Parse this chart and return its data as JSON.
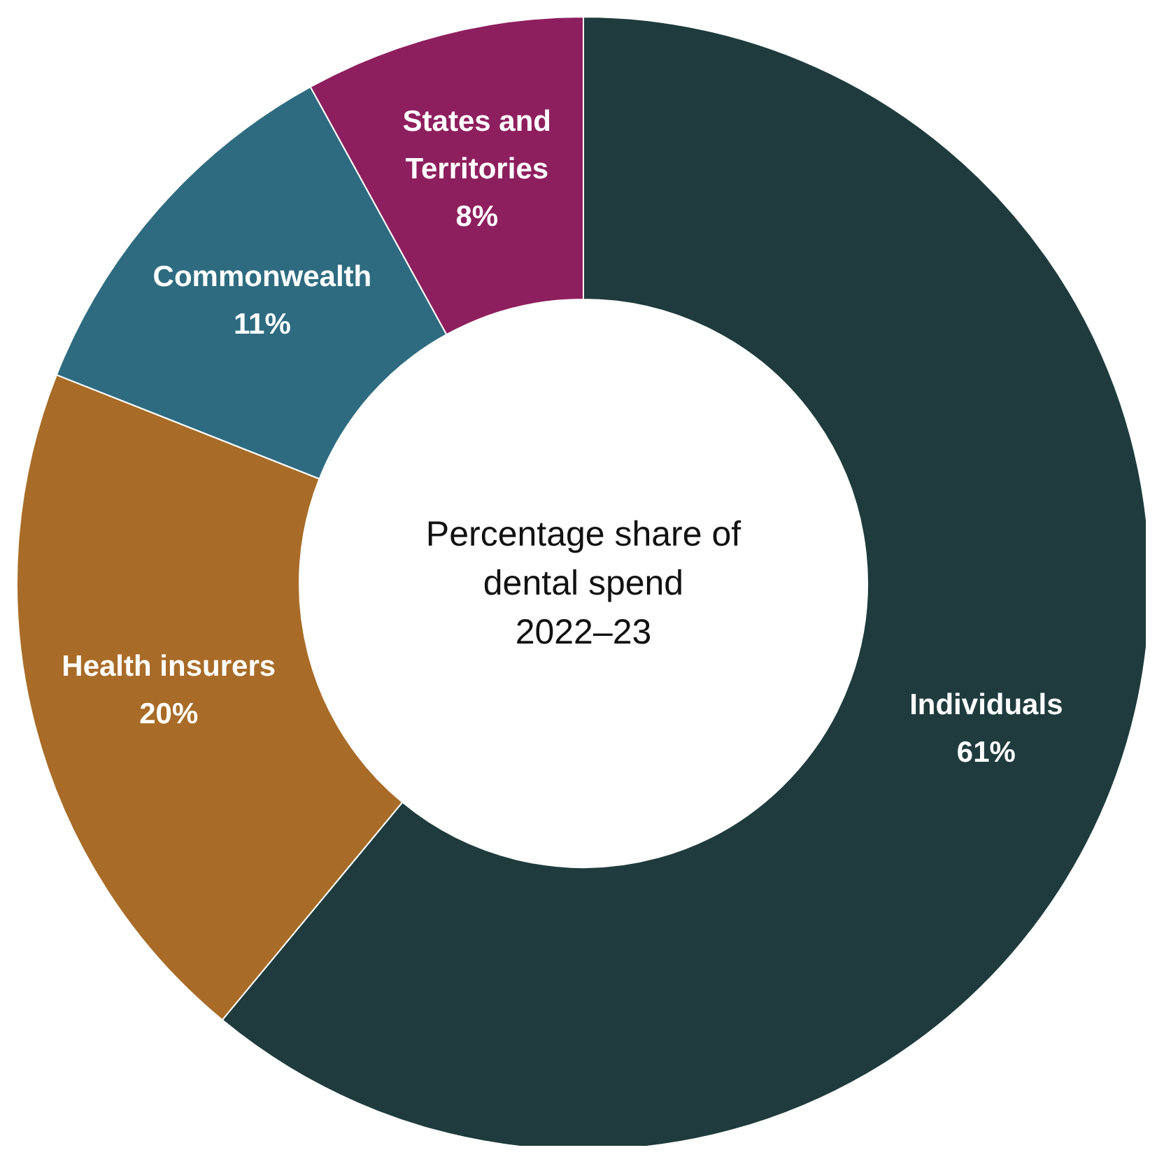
{
  "chart_data": {
    "type": "donut",
    "title": "Percentage share of dental spend 2022–23",
    "categories": [
      "Individuals",
      "Health insurers",
      "Commonwealth",
      "States and Territories"
    ],
    "values": [
      61,
      20,
      11,
      8
    ],
    "value_labels": [
      "61%",
      "20%",
      "11%",
      "8%"
    ],
    "colors": [
      "#1f3b3e",
      "#a86c28",
      "#2e6b80",
      "#8e1f5e"
    ],
    "legend": false
  }
}
